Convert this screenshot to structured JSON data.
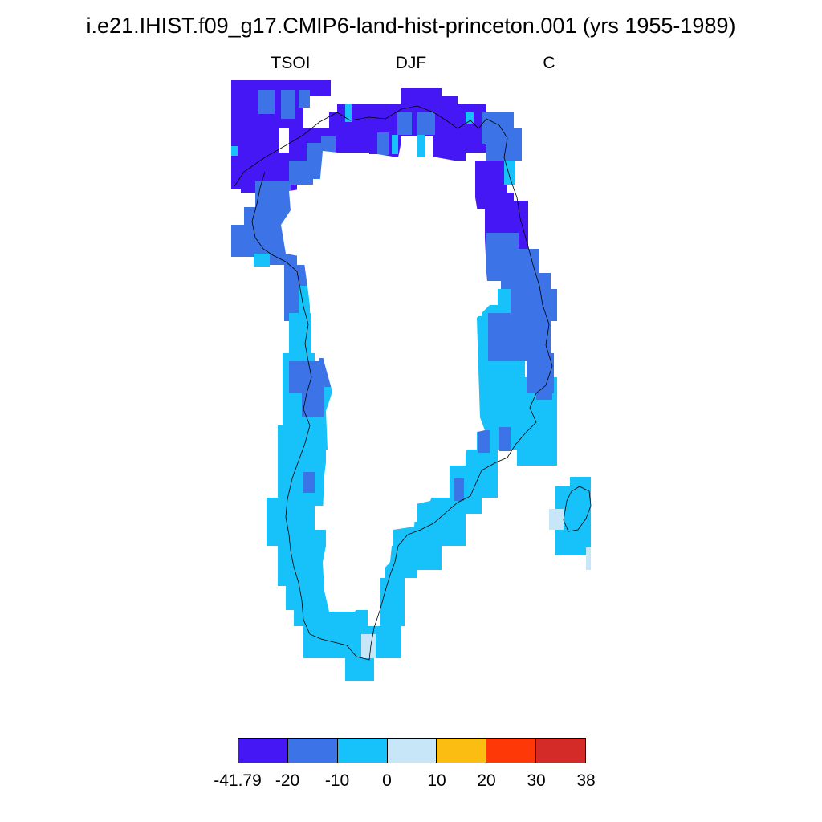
{
  "title": "i.e21.IHIST.f09_g17.CMIP6-land-hist-princeton.001 (yrs 1955-1989)",
  "labels": {
    "variable": "TSOI",
    "season": "DJF",
    "units": "C"
  },
  "legend": {
    "tick_labels": [
      "-41.79",
      "-20",
      "-10",
      "0",
      "10",
      "20",
      "30",
      "38"
    ],
    "colors": [
      "#4617f5",
      "#3c74e8",
      "#17c2fa",
      "#c7e7f8",
      "#fcbd12",
      "#fe3807",
      "#d52b28"
    ]
  },
  "map": {
    "region": "Greenland",
    "coastline_color": "#000000",
    "no_data_color": "#ffffff"
  }
}
